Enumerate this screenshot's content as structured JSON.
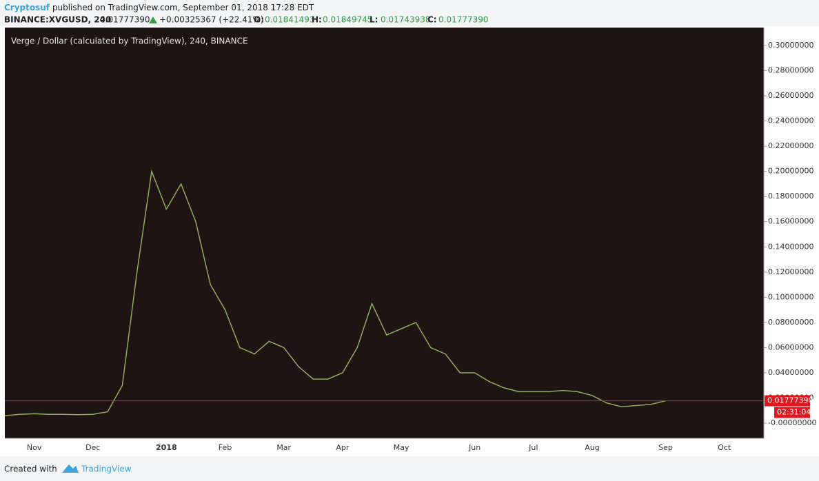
{
  "header": {
    "author": "Cryptosuf",
    "published": "published on TradingView.com, September 01, 2018 17:28 EDT",
    "symbol": "BINANCE:XVGUSD, 240",
    "price": "0.01777390",
    "change": "+0.00325367 (+22.41%)",
    "ohlc": [
      {
        "label": "O:",
        "value": "0.01841493"
      },
      {
        "label": "H:",
        "value": "0.01849745"
      },
      {
        "label": "L:",
        "value": "0.01743938"
      },
      {
        "label": "C:",
        "value": "0.01777390"
      }
    ]
  },
  "chart_data": {
    "type": "line",
    "title": "Verge / Dollar (calculated by TradingView), 240, BINANCE",
    "categories": [
      null,
      null,
      "Nov",
      null,
      null,
      null,
      "Dec",
      null,
      null,
      null,
      null,
      "2018",
      null,
      null,
      null,
      "Feb",
      null,
      null,
      null,
      "Mar",
      null,
      null,
      null,
      "Apr",
      null,
      null,
      null,
      "May",
      null,
      null,
      null,
      null,
      "Jun",
      null,
      null,
      null,
      "Jul",
      null,
      null,
      null,
      "Aug",
      null,
      null,
      null,
      null,
      "Sep",
      null,
      null,
      null,
      "Oct"
    ],
    "series": [
      {
        "name": "XVGUSD",
        "color": "#8fae5a",
        "values": [
          0.006,
          0.007,
          0.0075,
          0.007,
          0.007,
          0.0068,
          0.007,
          0.009,
          0.03,
          0.12,
          0.2,
          0.17,
          0.19,
          0.16,
          0.11,
          0.09,
          0.06,
          0.055,
          0.065,
          0.06,
          0.045,
          0.035,
          0.035,
          0.04,
          0.06,
          0.095,
          0.07,
          0.075,
          0.08,
          0.06,
          0.055,
          0.04,
          0.04,
          0.033,
          0.028,
          0.025,
          0.025,
          0.025,
          0.026,
          0.025,
          0.022,
          0.016,
          0.013,
          0.014,
          0.015,
          0.0178,
          null,
          null,
          null,
          null
        ]
      }
    ],
    "ylim": [
      -0.012,
      0.3142
    ],
    "yticks": [
      {
        "value": 0,
        "label": "-0.00000000"
      },
      {
        "value": 0.02,
        "label": "0.02000000"
      },
      {
        "value": 0.04,
        "label": "0.04000000"
      },
      {
        "value": 0.06,
        "label": "0.06000000"
      },
      {
        "value": 0.08,
        "label": "0.08000000"
      },
      {
        "value": 0.1,
        "label": "0.10000000"
      },
      {
        "value": 0.12,
        "label": "0.12000000"
      },
      {
        "value": 0.14,
        "label": "0.14000000"
      },
      {
        "value": 0.16,
        "label": "0.16000000"
      },
      {
        "value": 0.18,
        "label": "0.18000000"
      },
      {
        "value": 0.2,
        "label": "0.20000000"
      },
      {
        "value": 0.22,
        "label": "0.22000000"
      },
      {
        "value": 0.24,
        "label": "0.24000000"
      },
      {
        "value": 0.26,
        "label": "0.26000000"
      },
      {
        "value": 0.28,
        "label": "0.28000000"
      },
      {
        "value": 0.3,
        "label": "0.30000000"
      }
    ],
    "grid": false,
    "last_price": {
      "value": 0.0177739,
      "label": "0.01777390"
    },
    "countdown": "02:31:04"
  },
  "footer": {
    "created": "Created with",
    "brand": "TradingView"
  }
}
